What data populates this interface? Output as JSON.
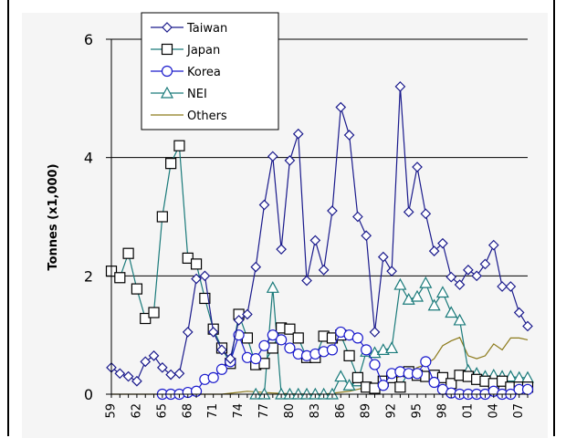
{
  "chart_data": {
    "type": "line",
    "title": "",
    "xlabel": "",
    "ylabel": "Tonnes (x1,000)",
    "ylim": [
      0,
      6
    ],
    "xlim": [
      1959,
      2008
    ],
    "yticks": [
      0,
      2,
      4,
      6
    ],
    "ytick_labels": [
      "0",
      "2",
      "4",
      "6"
    ],
    "xticks": [
      1959,
      1962,
      1965,
      1968,
      1971,
      1974,
      1977,
      1980,
      1983,
      1986,
      1989,
      1992,
      1995,
      1998,
      2001,
      2004,
      2007
    ],
    "xtick_labels": [
      "59",
      "62",
      "65",
      "68",
      "71",
      "74",
      "77",
      "80",
      "83",
      "86",
      "89",
      "92",
      "95",
      "98",
      "01",
      "04",
      "07"
    ],
    "grid": true,
    "legend_position": "top-left",
    "series": [
      {
        "name": "Taiwan",
        "marker": "diamond",
        "color": "#1a1a8c",
        "x": [
          1959,
          1960,
          1961,
          1962,
          1963,
          1964,
          1965,
          1966,
          1967,
          1968,
          1969,
          1970,
          1971,
          1972,
          1973,
          1974,
          1975,
          1976,
          1977,
          1978,
          1979,
          1980,
          1981,
          1982,
          1983,
          1984,
          1985,
          1986,
          1987,
          1988,
          1989,
          1990,
          1991,
          1992,
          1993,
          1994,
          1995,
          1996,
          1997,
          1998,
          1999,
          2000,
          2001,
          2002,
          2003,
          2004,
          2005,
          2006,
          2007,
          2008
        ],
        "y": [
          0.45,
          0.35,
          0.3,
          0.22,
          0.55,
          0.65,
          0.45,
          0.33,
          0.35,
          1.05,
          1.95,
          2.0,
          1.05,
          0.75,
          0.6,
          1.25,
          1.35,
          2.15,
          3.2,
          4.02,
          2.45,
          3.95,
          4.4,
          1.92,
          2.6,
          2.1,
          3.1,
          4.85,
          4.38,
          3.0,
          2.68,
          1.05,
          2.32,
          2.08,
          5.2,
          3.08,
          3.84,
          3.05,
          2.42,
          2.55,
          1.98,
          1.85,
          2.1,
          2.0,
          2.2,
          2.52,
          1.82,
          1.82,
          1.38,
          1.15
        ]
      },
      {
        "name": "Japan",
        "marker": "square",
        "color": "#1a7a7a",
        "x": [
          1959,
          1960,
          1961,
          1962,
          1963,
          1964,
          1965,
          1966,
          1967,
          1968,
          1969,
          1970,
          1971,
          1972,
          1973,
          1974,
          1975,
          1976,
          1977,
          1978,
          1979,
          1980,
          1981,
          1982,
          1983,
          1984,
          1985,
          1986,
          1987,
          1988,
          1989,
          1990,
          1991,
          1992,
          1993,
          1994,
          1995,
          1996,
          1997,
          1998,
          1999,
          2000,
          2001,
          2002,
          2003,
          2004,
          2005,
          2006,
          2007,
          2008
        ],
        "y": [
          2.08,
          1.97,
          2.38,
          1.78,
          1.28,
          1.38,
          3.0,
          3.9,
          4.2,
          2.3,
          2.2,
          1.62,
          1.1,
          0.78,
          0.52,
          1.35,
          0.95,
          0.5,
          0.52,
          0.78,
          1.12,
          1.1,
          0.95,
          0.62,
          0.62,
          0.98,
          0.95,
          1.0,
          0.65,
          0.28,
          0.12,
          0.1,
          0.22,
          0.28,
          0.12,
          0.38,
          0.32,
          0.3,
          0.32,
          0.28,
          0.18,
          0.32,
          0.3,
          0.25,
          0.22,
          0.18,
          0.22,
          0.12,
          0.12,
          0.12
        ]
      },
      {
        "name": "Korea",
        "marker": "circle",
        "color": "#1a1acc",
        "x": [
          1965,
          1966,
          1967,
          1968,
          1969,
          1970,
          1971,
          1972,
          1973,
          1974,
          1975,
          1976,
          1977,
          1978,
          1979,
          1980,
          1981,
          1982,
          1983,
          1984,
          1985,
          1986,
          1987,
          1988,
          1989,
          1990,
          1991,
          1992,
          1993,
          1994,
          1995,
          1996,
          1997,
          1998,
          1999,
          2000,
          2001,
          2002,
          2003,
          2004,
          2005,
          2006,
          2007,
          2008
        ],
        "y": [
          0.0,
          0.0,
          0.0,
          0.03,
          0.05,
          0.25,
          0.28,
          0.42,
          0.55,
          1.0,
          0.62,
          0.6,
          0.82,
          1.0,
          0.92,
          0.78,
          0.68,
          0.65,
          0.68,
          0.72,
          0.75,
          1.05,
          1.0,
          0.95,
          0.75,
          0.5,
          0.15,
          0.35,
          0.38,
          0.35,
          0.35,
          0.55,
          0.2,
          0.08,
          0.02,
          0.0,
          0.0,
          0.0,
          0.0,
          0.05,
          0.0,
          0.0,
          0.08,
          0.08
        ]
      },
      {
        "name": "NEI",
        "marker": "triangle",
        "color": "#1a7a7a",
        "x": [
          1976,
          1977,
          1978,
          1979,
          1980,
          1981,
          1982,
          1983,
          1984,
          1985,
          1986,
          1987,
          1988,
          1989,
          1990,
          1991,
          1992,
          1993,
          1994,
          1995,
          1996,
          1997,
          1998,
          1999,
          2000,
          2001,
          2002,
          2003,
          2004,
          2005,
          2006,
          2007,
          2008
        ],
        "y": [
          0.0,
          0.0,
          1.8,
          0.0,
          0.0,
          0.0,
          0.0,
          0.0,
          0.0,
          0.0,
          0.3,
          0.15,
          0.22,
          0.72,
          0.7,
          0.75,
          0.78,
          1.85,
          1.6,
          1.65,
          1.88,
          1.5,
          1.72,
          1.38,
          1.25,
          0.4,
          0.35,
          0.3,
          0.32,
          0.3,
          0.3,
          0.28,
          0.28
        ]
      },
      {
        "name": "Others",
        "marker": "none",
        "color": "#8c7a1a",
        "x": [
          1959,
          1972,
          1975,
          1978,
          1981,
          1984,
          1987,
          1990,
          1992,
          1993,
          1994,
          1995,
          1996,
          1997,
          1998,
          1999,
          2000,
          2001,
          2002,
          2003,
          2004,
          2005,
          2006,
          2007,
          2008
        ],
        "y": [
          0.0,
          0.0,
          0.05,
          0.02,
          0.0,
          0.0,
          0.05,
          0.15,
          0.25,
          0.3,
          0.35,
          0.45,
          0.5,
          0.6,
          0.82,
          0.9,
          0.96,
          0.65,
          0.6,
          0.65,
          0.85,
          0.75,
          0.95,
          0.95,
          0.92
        ]
      }
    ]
  },
  "colors": {
    "axis": "#000000",
    "grid": "#000000",
    "background": "#f5f5f5"
  }
}
